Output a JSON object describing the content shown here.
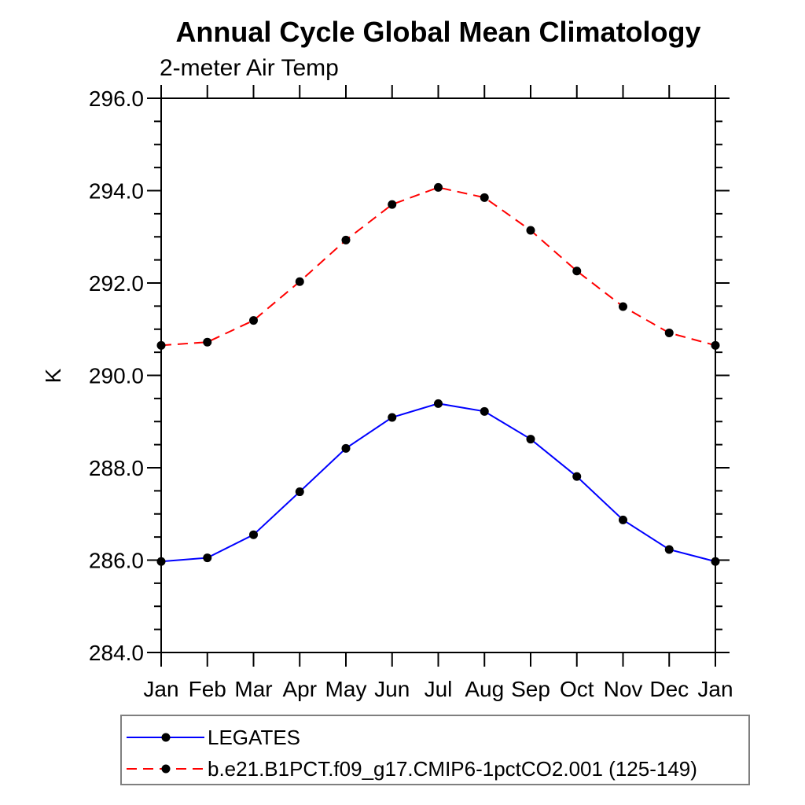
{
  "chart_data": {
    "type": "line",
    "title": "Annual Cycle Global Mean Climatology",
    "subtitle": "2-meter Air Temp",
    "ylabel": "K",
    "categories": [
      "Jan",
      "Feb",
      "Mar",
      "Apr",
      "May",
      "Jun",
      "Jul",
      "Aug",
      "Sep",
      "Oct",
      "Nov",
      "Dec",
      "Jan"
    ],
    "ylim": [
      284.0,
      296.0
    ],
    "y_major_step": 2.0,
    "y_minor_step": 0.5,
    "y_tick_decimals": 1,
    "grid": false,
    "legend_position": "bottom-left",
    "axis_color": "#000000",
    "series": [
      {
        "name": "LEGATES",
        "color": "#0000ff",
        "line_style": "solid",
        "marker": "circle",
        "marker_color": "#000000",
        "values": [
          285.97,
          286.05,
          286.55,
          287.48,
          288.42,
          289.09,
          289.39,
          289.22,
          288.62,
          287.81,
          286.87,
          286.23,
          285.97
        ]
      },
      {
        "name": "b.e21.B1PCT.f09_g17.CMIP6-1pctCO2.001 (125-149)",
        "color": "#ff0000",
        "line_style": "dashed",
        "marker": "circle",
        "marker_color": "#000000",
        "values": [
          290.65,
          290.72,
          291.19,
          292.03,
          292.93,
          293.7,
          294.07,
          293.85,
          293.14,
          292.26,
          291.49,
          290.92,
          290.65
        ]
      }
    ]
  }
}
